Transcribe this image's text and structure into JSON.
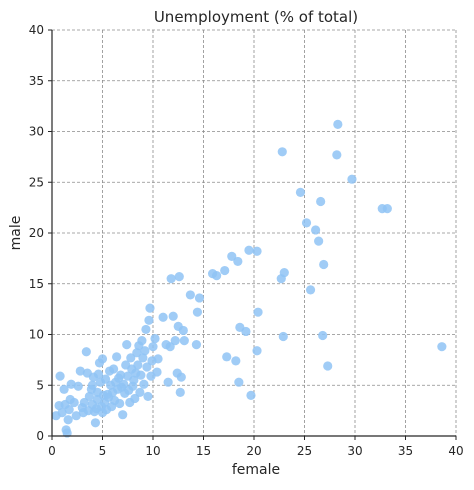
{
  "chart_data": {
    "type": "scatter",
    "title": "Unemployment (% of total)",
    "xlabel": "female",
    "ylabel": "male",
    "xlim": [
      0,
      40
    ],
    "ylim": [
      0,
      40
    ],
    "xticks": [
      0,
      5,
      10,
      15,
      20,
      25,
      30,
      35,
      40
    ],
    "yticks": [
      0,
      5,
      10,
      15,
      20,
      25,
      30,
      35,
      40
    ],
    "grid": true,
    "point_color": "#8fc3f5",
    "series": [
      {
        "points": [
          [
            0.4,
            2.0
          ],
          [
            0.7,
            3.0
          ],
          [
            0.8,
            5.9
          ],
          [
            1.0,
            2.3
          ],
          [
            1.2,
            4.6
          ],
          [
            1.3,
            3.1
          ],
          [
            1.4,
            0.6
          ],
          [
            1.5,
            0.3
          ],
          [
            1.6,
            1.6
          ],
          [
            1.7,
            2.6
          ],
          [
            1.8,
            3.6
          ],
          [
            1.9,
            5.1
          ],
          [
            2.2,
            3.3
          ],
          [
            2.4,
            2.0
          ],
          [
            2.6,
            4.9
          ],
          [
            2.8,
            6.4
          ],
          [
            3.0,
            2.8
          ],
          [
            3.1,
            2.3
          ],
          [
            3.2,
            3.3
          ],
          [
            3.4,
            8.3
          ],
          [
            3.5,
            6.2
          ],
          [
            3.6,
            2.5
          ],
          [
            3.7,
            3.9
          ],
          [
            3.9,
            4.6
          ],
          [
            4.0,
            5.0
          ],
          [
            4.0,
            3.1
          ],
          [
            4.1,
            5.8
          ],
          [
            4.2,
            2.4
          ],
          [
            4.3,
            1.3
          ],
          [
            4.4,
            2.7
          ],
          [
            4.5,
            3.6
          ],
          [
            4.5,
            4.3
          ],
          [
            4.6,
            6.1
          ],
          [
            4.7,
            7.2
          ],
          [
            4.8,
            5.3
          ],
          [
            4.9,
            2.9
          ],
          [
            5.0,
            7.6
          ],
          [
            5.0,
            2.3
          ],
          [
            5.1,
            4.0
          ],
          [
            5.2,
            3.3
          ],
          [
            5.3,
            5.6
          ],
          [
            5.4,
            2.6
          ],
          [
            5.5,
            4.1
          ],
          [
            5.6,
            3.8
          ],
          [
            5.7,
            6.4
          ],
          [
            5.8,
            5.0
          ],
          [
            5.9,
            2.9
          ],
          [
            6.0,
            4.3
          ],
          [
            6.1,
            6.6
          ],
          [
            6.2,
            3.5
          ],
          [
            6.3,
            5.3
          ],
          [
            6.4,
            7.8
          ],
          [
            6.5,
            4.6
          ],
          [
            6.6,
            5.7
          ],
          [
            6.7,
            3.2
          ],
          [
            6.8,
            6.0
          ],
          [
            6.9,
            4.8
          ],
          [
            7.0,
            2.1
          ],
          [
            7.1,
            5.1
          ],
          [
            7.2,
            4.2
          ],
          [
            7.3,
            7.0
          ],
          [
            7.4,
            9.0
          ],
          [
            7.5,
            5.9
          ],
          [
            7.6,
            4.5
          ],
          [
            7.7,
            3.3
          ],
          [
            7.8,
            7.7
          ],
          [
            7.9,
            6.6
          ],
          [
            8.0,
            4.9
          ],
          [
            8.1,
            5.5
          ],
          [
            8.2,
            3.7
          ],
          [
            8.3,
            6.2
          ],
          [
            8.4,
            8.2
          ],
          [
            8.5,
            7.0
          ],
          [
            8.6,
            8.9
          ],
          [
            8.7,
            4.3
          ],
          [
            8.8,
            6.0
          ],
          [
            8.9,
            9.4
          ],
          [
            9.0,
            7.7
          ],
          [
            9.1,
            5.1
          ],
          [
            9.2,
            8.4
          ],
          [
            9.3,
            10.5
          ],
          [
            9.4,
            6.8
          ],
          [
            9.5,
            3.9
          ],
          [
            9.6,
            11.4
          ],
          [
            9.7,
            12.6
          ],
          [
            9.8,
            5.9
          ],
          [
            9.9,
            7.4
          ],
          [
            10.0,
            8.8
          ],
          [
            10.2,
            9.6
          ],
          [
            10.4,
            6.3
          ],
          [
            10.5,
            7.6
          ],
          [
            11.0,
            11.7
          ],
          [
            11.3,
            9.0
          ],
          [
            11.5,
            5.3
          ],
          [
            11.7,
            8.8
          ],
          [
            11.8,
            15.5
          ],
          [
            12.0,
            11.8
          ],
          [
            12.2,
            9.4
          ],
          [
            12.4,
            6.2
          ],
          [
            12.5,
            10.8
          ],
          [
            12.6,
            15.7
          ],
          [
            12.7,
            4.3
          ],
          [
            12.8,
            5.8
          ],
          [
            13.0,
            10.4
          ],
          [
            13.1,
            9.4
          ],
          [
            13.7,
            13.9
          ],
          [
            14.3,
            9.0
          ],
          [
            14.4,
            12.2
          ],
          [
            14.6,
            13.6
          ],
          [
            15.9,
            16.0
          ],
          [
            16.3,
            15.8
          ],
          [
            17.1,
            16.3
          ],
          [
            17.3,
            7.8
          ],
          [
            17.8,
            17.7
          ],
          [
            18.2,
            7.4
          ],
          [
            18.4,
            17.2
          ],
          [
            18.5,
            5.3
          ],
          [
            18.6,
            10.7
          ],
          [
            19.2,
            10.3
          ],
          [
            19.5,
            18.3
          ],
          [
            19.7,
            4.0
          ],
          [
            20.3,
            8.4
          ],
          [
            20.4,
            12.2
          ],
          [
            20.3,
            18.2
          ],
          [
            22.7,
            15.5
          ],
          [
            22.8,
            28.0
          ],
          [
            22.9,
            9.8
          ],
          [
            23.0,
            16.1
          ],
          [
            24.6,
            24.0
          ],
          [
            25.2,
            21.0
          ],
          [
            25.6,
            14.4
          ],
          [
            26.1,
            20.3
          ],
          [
            26.4,
            19.2
          ],
          [
            26.6,
            23.1
          ],
          [
            26.8,
            9.9
          ],
          [
            26.9,
            16.9
          ],
          [
            27.3,
            6.9
          ],
          [
            28.2,
            27.7
          ],
          [
            28.3,
            30.7
          ],
          [
            29.7,
            25.3
          ],
          [
            32.7,
            22.4
          ],
          [
            33.2,
            22.4
          ],
          [
            38.6,
            8.8
          ]
        ]
      }
    ]
  }
}
